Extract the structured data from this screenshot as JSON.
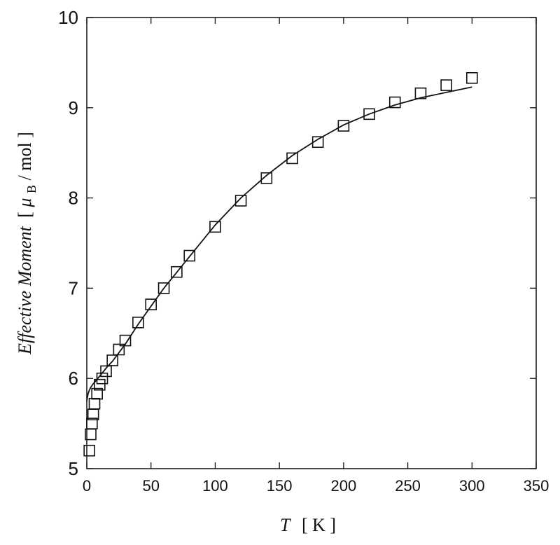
{
  "chart_data": {
    "type": "scatter",
    "xlabel_symbol": "T",
    "xlabel_unit": "[ K ]",
    "ylabel_italic": "Effective Moment",
    "ylabel_unit_open": "[ ",
    "ylabel_mu": "μ",
    "ylabel_sub": "B",
    "ylabel_unit_close": " / mol ]",
    "xlim": [
      0,
      350
    ],
    "ylim": [
      5,
      10
    ],
    "x_ticks": [
      0,
      50,
      100,
      150,
      200,
      250,
      300,
      350
    ],
    "y_ticks": [
      5,
      6,
      7,
      8,
      9,
      10
    ],
    "grid": false,
    "series": [
      {
        "marker": "open-square",
        "x": [
          2,
          3,
          4,
          5,
          6,
          8,
          10,
          12,
          15,
          20,
          25,
          30,
          40,
          50,
          60,
          70,
          80,
          100,
          120,
          140,
          160,
          180,
          200,
          220,
          240,
          260,
          280,
          300
        ],
        "y": [
          5.2,
          5.38,
          5.5,
          5.6,
          5.72,
          5.83,
          5.93,
          6.0,
          6.08,
          6.2,
          6.32,
          6.42,
          6.62,
          6.82,
          7.0,
          7.18,
          7.36,
          7.68,
          7.97,
          8.22,
          8.44,
          8.62,
          8.8,
          8.93,
          9.06,
          9.16,
          9.25,
          9.33
        ]
      },
      {
        "marker": "line",
        "x": [
          0,
          1,
          2,
          3,
          5,
          8,
          12,
          16,
          20,
          30,
          40,
          50,
          60,
          80,
          100,
          120,
          140,
          160,
          180,
          200,
          220,
          240,
          260,
          280,
          300
        ],
        "y": [
          5.75,
          5.83,
          5.87,
          5.9,
          5.94,
          5.99,
          6.06,
          6.13,
          6.19,
          6.38,
          6.6,
          6.8,
          7.0,
          7.35,
          7.7,
          8.0,
          8.25,
          8.47,
          8.65,
          8.81,
          8.93,
          9.03,
          9.11,
          9.17,
          9.23
        ]
      }
    ]
  }
}
